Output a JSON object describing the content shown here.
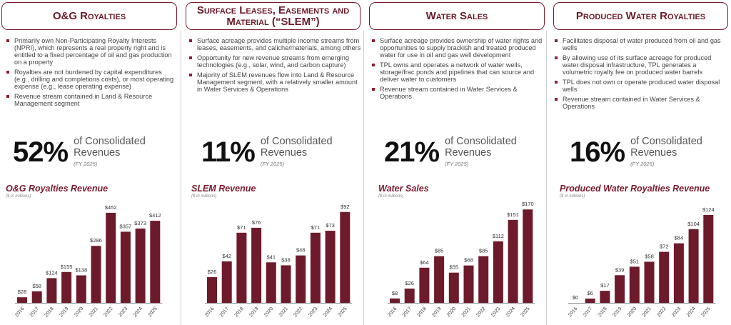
{
  "colors": {
    "accent": "#6d1a2a",
    "border": "#7a1a2c"
  },
  "panels": [
    {
      "header": "O&G Royalties",
      "bullets": [
        "Primarily own Non-Participating Royalty Interests (NPRI), which represents a real property right and is entitled to a fixed percentage of oil and gas production on a property",
        "Royalties are not burdened by capital expenditures (e.g., drilling and completions costs), or most operating expense (e.g., lease operating expense)",
        "Revenue stream contained in Land & Resource Management segment"
      ],
      "percent": "52%",
      "of_text": "of Consolidated Revenues",
      "fy": "(FY 2025)",
      "chart_title": "O&G Royalties Revenue",
      "chart_subtitle": "($ in millions)"
    },
    {
      "header": "Surface Leases, Easements and Material (“SLEM”)",
      "bullets": [
        "Surface acreage provides multiple income streams from leases, easements, and caliche/materials, among others",
        "Opportunity for new revenue streams from emerging technologies (e.g., solar, wind, and carbon capture)",
        "Majority of SLEM revenues flow into Land & Resource Management segment, with a relatively smaller amount in Water Services & Operations"
      ],
      "percent": "11%",
      "of_text": "of Consolidated Revenues",
      "fy": "(FY 2025)",
      "chart_title": "SLEM Revenue",
      "chart_subtitle": "($ in millions)"
    },
    {
      "header": "Water Sales",
      "bullets": [
        "Surface acreage provides ownership of water rights and opportunities to supply brackish and treated produced water for use in oil and gas well development",
        "TPL owns and operates a network of water wells, storage/frac ponds and pipelines that can source and deliver water to customers",
        "Revenue stream contained in Water Services & Operations"
      ],
      "percent": "21%",
      "of_text": "of Consolidated Revenues",
      "fy": "(FY 2025)",
      "chart_title": "Water Sales",
      "chart_subtitle": "($ in millions)"
    },
    {
      "header": "Produced Water Royalties",
      "bullets": [
        "Facilitates disposal of water produced from oil and gas wells",
        "By allowing use of its surface acreage for produced water disposal infrastructure, TPL generates a volumetric royalty fee on produced water barrels",
        "TPL does not own or operate produced water disposal wells",
        "Revenue stream contained in Water Services & Operations"
      ],
      "percent": "16%",
      "of_text": "of Consolidated Revenues",
      "fy": "(FY 2025)",
      "chart_title": "Produced Water Royalties Revenue",
      "chart_subtitle": "($ in millions)"
    }
  ],
  "chart_data": [
    {
      "type": "bar",
      "title": "O&G Royalties Revenue",
      "ylabel": "$ in millions",
      "categories": [
        "2016",
        "2017",
        "2018",
        "2019",
        "2020",
        "2021",
        "2022",
        "2023",
        "2024",
        "2025"
      ],
      "values": [
        28,
        58,
        124,
        155,
        138,
        286,
        452,
        357,
        373,
        412
      ],
      "labels": [
        "$28",
        "$58",
        "$124",
        "$155",
        "$138",
        "$286",
        "$452",
        "$357",
        "$373",
        "$412"
      ],
      "ylim": [
        0,
        466
      ]
    },
    {
      "type": "bar",
      "title": "SLEM Revenue",
      "ylabel": "$ in millions",
      "categories": [
        "2016",
        "2017",
        "2018",
        "2019",
        "2020",
        "2021",
        "2022",
        "2023",
        "2024",
        "2025"
      ],
      "values": [
        26,
        42,
        71,
        76,
        41,
        38,
        48,
        71,
        73,
        92
      ],
      "labels": [
        "$26",
        "$42",
        "$71",
        "$76",
        "$41",
        "$38",
        "$48",
        "$71",
        "$73",
        "$92"
      ],
      "ylim": [
        0,
        94
      ]
    },
    {
      "type": "bar",
      "title": "Water Sales",
      "ylabel": "$ in millions",
      "categories": [
        "2016",
        "2017",
        "2018",
        "2019",
        "2020",
        "2021",
        "2022",
        "2023",
        "2024",
        "2025"
      ],
      "values": [
        8,
        26,
        64,
        85,
        55,
        68,
        85,
        112,
        151,
        170
      ],
      "labels": [
        "$8",
        "$26",
        "$64",
        "$85",
        "$55",
        "$68",
        "$85",
        "$112",
        "$151",
        "$170"
      ],
      "ylim": [
        0,
        169
      ]
    },
    {
      "type": "bar",
      "title": "Produced Water Royalties Revenue",
      "ylabel": "$ in millions",
      "categories": [
        "2016",
        "2017",
        "2018",
        "2019",
        "2020",
        "2021",
        "2022",
        "2023",
        "2024",
        "2025"
      ],
      "values": [
        0,
        6,
        17,
        39,
        51,
        58,
        72,
        84,
        104,
        124
      ],
      "labels": [
        "$0",
        "$6",
        "$17",
        "$39",
        "$51",
        "$58",
        "$72",
        "$84",
        "$104",
        "$124"
      ],
      "ylim": [
        0,
        131
      ]
    }
  ]
}
